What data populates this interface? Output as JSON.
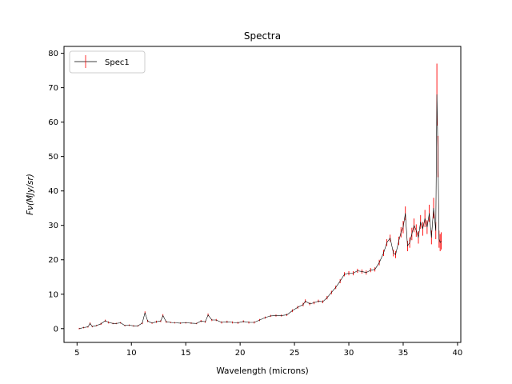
{
  "chart_data": {
    "type": "line",
    "title": "Spectra",
    "xlabel": "Wavelength (microns)",
    "ylabel": "Fν(MJy/sr)",
    "xlim": [
      3.8,
      40.3
    ],
    "ylim": [
      -4,
      82
    ],
    "xticks": [
      5,
      10,
      15,
      20,
      25,
      30,
      35,
      40
    ],
    "yticks": [
      0,
      10,
      20,
      30,
      40,
      50,
      60,
      70,
      80
    ],
    "grid": false,
    "legend_position": "top-left",
    "series": [
      {
        "name": "Spec1",
        "line_color": "#000000",
        "errorbar_color": "#ff0000",
        "x": [
          5.2,
          5.6,
          6.0,
          6.2,
          6.4,
          6.8,
          7.2,
          7.6,
          7.9,
          8.3,
          8.6,
          9.0,
          9.4,
          9.8,
          10.2,
          10.6,
          11.0,
          11.25,
          11.5,
          11.9,
          12.3,
          12.7,
          12.9,
          13.2,
          13.6,
          14.0,
          14.5,
          15.0,
          15.5,
          16.0,
          16.4,
          16.8,
          17.05,
          17.4,
          17.8,
          18.3,
          18.8,
          19.3,
          19.8,
          20.3,
          20.8,
          21.3,
          21.8,
          22.3,
          22.8,
          23.3,
          23.8,
          24.3,
          24.8,
          25.3,
          25.8,
          26.0,
          26.4,
          26.8,
          27.2,
          27.6,
          28.0,
          28.4,
          28.8,
          29.2,
          29.6,
          30.0,
          30.4,
          30.8,
          31.2,
          31.6,
          32.0,
          32.4,
          32.8,
          33.2,
          33.5,
          33.8,
          34.1,
          34.3,
          34.6,
          34.8,
          35.0,
          35.2,
          35.4,
          35.6,
          35.8,
          36.0,
          36.2,
          36.4,
          36.6,
          36.8,
          37.0,
          37.2,
          37.4,
          37.6,
          37.8,
          38.0,
          38.1,
          38.2,
          38.3,
          38.4,
          38.5
        ],
        "y": [
          0.0,
          0.3,
          0.5,
          1.5,
          0.6,
          0.9,
          1.4,
          2.3,
          1.8,
          1.5,
          1.5,
          1.7,
          0.9,
          1.0,
          0.8,
          0.8,
          1.6,
          4.6,
          2.2,
          1.6,
          2.0,
          2.2,
          3.8,
          2.0,
          1.8,
          1.7,
          1.6,
          1.7,
          1.6,
          1.5,
          2.2,
          2.0,
          4.0,
          2.5,
          2.5,
          1.8,
          2.0,
          1.8,
          1.7,
          2.1,
          1.8,
          1.8,
          2.5,
          3.2,
          3.7,
          3.8,
          3.8,
          4.0,
          5.2,
          6.2,
          7.0,
          8.0,
          7.2,
          7.5,
          8.0,
          7.8,
          9.0,
          10.5,
          12.0,
          13.8,
          15.8,
          16.1,
          16.1,
          16.8,
          16.6,
          16.3,
          17.0,
          17.2,
          19.2,
          22.0,
          25.0,
          26.3,
          22.0,
          21.5,
          25.5,
          28.0,
          29.5,
          33.5,
          24.0,
          25.0,
          27.5,
          30.0,
          28.5,
          26.5,
          31.0,
          29.0,
          32.0,
          29.5,
          33.5,
          26.5,
          35.0,
          28.5,
          68.0,
          50.0,
          26.0,
          25.0,
          25.5
        ],
        "yerr": [
          0.2,
          0.2,
          0.2,
          0.3,
          0.2,
          0.2,
          0.3,
          0.3,
          0.3,
          0.2,
          0.2,
          0.2,
          0.2,
          0.2,
          0.2,
          0.2,
          0.3,
          0.4,
          0.3,
          0.2,
          0.3,
          0.3,
          0.4,
          0.3,
          0.2,
          0.2,
          0.2,
          0.2,
          0.2,
          0.2,
          0.3,
          0.3,
          0.4,
          0.3,
          0.3,
          0.3,
          0.3,
          0.3,
          0.3,
          0.3,
          0.3,
          0.3,
          0.3,
          0.3,
          0.3,
          0.3,
          0.3,
          0.3,
          0.4,
          0.4,
          0.5,
          0.5,
          0.4,
          0.4,
          0.4,
          0.4,
          0.5,
          0.5,
          0.5,
          0.6,
          0.6,
          0.6,
          0.6,
          0.6,
          0.6,
          0.6,
          0.6,
          0.6,
          0.8,
          0.9,
          1.0,
          1.0,
          1.0,
          1.0,
          1.2,
          1.5,
          1.8,
          2.0,
          1.5,
          1.5,
          1.8,
          2.0,
          1.8,
          1.8,
          2.0,
          2.0,
          2.5,
          2.0,
          2.5,
          2.0,
          3.0,
          2.5,
          9.0,
          6.0,
          2.5,
          2.5,
          2.5
        ]
      }
    ]
  }
}
